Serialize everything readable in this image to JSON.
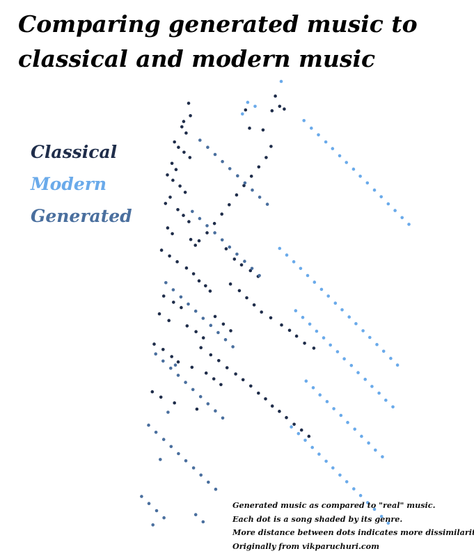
{
  "title": "Comparing generated music to classical and modern music",
  "legend": [
    {
      "label": "Classical",
      "color": "#1f2d4a"
    },
    {
      "label": "Modern",
      "color": "#6aaaea"
    },
    {
      "label": "Generated",
      "color": "#4a6f9e"
    }
  ],
  "caption": [
    "Generated music as compared to \"real\" music.",
    "Each dot is a song shaded by its genre.",
    "More distance between dots indicates more dissimilarity.",
    "Originally from vikparuchuri.com"
  ],
  "chart_data": {
    "type": "scatter",
    "title": "Comparing generated music to classical and modern music",
    "xlabel": "",
    "ylabel": "",
    "axes_shown": false,
    "grid": false,
    "legend_position": "left",
    "xlim": [
      0,
      100
    ],
    "ylim": [
      0,
      100
    ],
    "series": [
      {
        "name": "Classical",
        "color": "#1f2d4a",
        "points": [
          [
            51.5,
            96.7
          ],
          [
            52.9,
            94.4
          ],
          [
            54.4,
            93.8
          ],
          [
            50.4,
            93.4
          ],
          [
            41.8,
            93.6
          ],
          [
            43.1,
            89.5
          ],
          [
            47.5,
            89.1
          ],
          [
            50.1,
            85.4
          ],
          [
            23.3,
            95.1
          ],
          [
            23.9,
            92.3
          ],
          [
            21.7,
            91.0
          ],
          [
            21.1,
            89.8
          ],
          [
            22.5,
            88.4
          ],
          [
            18.7,
            86.4
          ],
          [
            20.0,
            85.2
          ],
          [
            21.8,
            84.1
          ],
          [
            23.7,
            82.9
          ],
          [
            17.9,
            81.6
          ],
          [
            19.2,
            80.2
          ],
          [
            16.4,
            79.0
          ],
          [
            18.2,
            77.8
          ],
          [
            20.5,
            76.5
          ],
          [
            22.2,
            75.1
          ],
          [
            17.3,
            74.0
          ],
          [
            15.8,
            72.6
          ],
          [
            19.8,
            71.2
          ],
          [
            21.6,
            69.9
          ],
          [
            23.4,
            68.5
          ],
          [
            16.5,
            67.1
          ],
          [
            18.0,
            65.8
          ],
          [
            24.0,
            64.5
          ],
          [
            25.5,
            63.2
          ],
          [
            14.5,
            62.1
          ],
          [
            17.1,
            60.8
          ],
          [
            19.6,
            59.5
          ],
          [
            22.6,
            58.1
          ],
          [
            24.9,
            56.8
          ],
          [
            26.7,
            55.2
          ],
          [
            28.8,
            54.1
          ],
          [
            30.3,
            52.9
          ],
          [
            15.2,
            51.8
          ],
          [
            18.4,
            50.4
          ],
          [
            20.9,
            49.2
          ],
          [
            13.8,
            47.8
          ],
          [
            16.9,
            46.3
          ],
          [
            22.8,
            45.1
          ],
          [
            25.7,
            43.8
          ],
          [
            28.1,
            42.4
          ],
          [
            12.1,
            41.0
          ],
          [
            15.0,
            39.8
          ],
          [
            17.8,
            38.2
          ],
          [
            19.9,
            37.0
          ],
          [
            24.4,
            35.8
          ],
          [
            29.0,
            34.5
          ],
          [
            31.5,
            33.2
          ],
          [
            33.8,
            31.9
          ],
          [
            11.5,
            30.3
          ],
          [
            14.3,
            29.1
          ],
          [
            18.7,
            27.8
          ],
          [
            26.0,
            26.4
          ],
          [
            35.5,
            62.4
          ],
          [
            38.2,
            60.1
          ],
          [
            40.5,
            58.8
          ],
          [
            43.4,
            57.5
          ],
          [
            45.9,
            56.2
          ],
          [
            36.9,
            54.5
          ],
          [
            39.8,
            53.0
          ],
          [
            42.2,
            51.4
          ],
          [
            44.6,
            49.8
          ],
          [
            47.0,
            48.2
          ],
          [
            50.0,
            46.9
          ],
          [
            53.5,
            45.3
          ],
          [
            56.1,
            44.1
          ],
          [
            58.4,
            42.8
          ],
          [
            61.0,
            41.2
          ],
          [
            64.0,
            40.1
          ],
          [
            31.9,
            47.2
          ],
          [
            34.6,
            45.5
          ],
          [
            37.0,
            44.0
          ],
          [
            27.3,
            40.2
          ],
          [
            30.5,
            38.6
          ],
          [
            33.1,
            37.3
          ],
          [
            35.8,
            35.7
          ],
          [
            38.6,
            34.3
          ],
          [
            41.0,
            33.0
          ],
          [
            43.5,
            31.6
          ],
          [
            46.0,
            30.0
          ],
          [
            48.3,
            28.7
          ],
          [
            50.5,
            27.1
          ],
          [
            52.8,
            25.9
          ],
          [
            55.1,
            24.5
          ],
          [
            57.6,
            23.0
          ],
          [
            60.0,
            21.7
          ],
          [
            62.4,
            20.3
          ],
          [
            26.7,
            64.2
          ],
          [
            29.3,
            66.0
          ],
          [
            31.7,
            68.1
          ],
          [
            34.1,
            70.2
          ],
          [
            36.5,
            72.3
          ],
          [
            38.9,
            74.5
          ],
          [
            41.3,
            76.6
          ],
          [
            43.7,
            78.7
          ],
          [
            46.1,
            80.8
          ],
          [
            48.5,
            82.9
          ]
        ]
      },
      {
        "name": "Modern",
        "color": "#6aaaea",
        "points": [
          [
            53.4,
            100.0
          ],
          [
            42.5,
            95.3
          ],
          [
            44.9,
            94.4
          ],
          [
            40.8,
            92.7
          ],
          [
            60.8,
            91.2
          ],
          [
            63.2,
            89.5
          ],
          [
            65.5,
            88.0
          ],
          [
            67.9,
            86.4
          ],
          [
            70.1,
            84.9
          ],
          [
            72.4,
            83.3
          ],
          [
            74.6,
            81.8
          ],
          [
            76.9,
            80.3
          ],
          [
            79.1,
            78.7
          ],
          [
            81.4,
            77.2
          ],
          [
            83.7,
            75.6
          ],
          [
            85.9,
            74.1
          ],
          [
            88.2,
            72.5
          ],
          [
            90.4,
            71.0
          ],
          [
            92.7,
            69.4
          ],
          [
            94.9,
            67.9
          ],
          [
            52.9,
            62.5
          ],
          [
            55.2,
            61.0
          ],
          [
            57.5,
            59.5
          ],
          [
            59.7,
            58.0
          ],
          [
            62.0,
            56.4
          ],
          [
            64.2,
            54.9
          ],
          [
            66.5,
            53.3
          ],
          [
            68.7,
            51.8
          ],
          [
            71.0,
            50.2
          ],
          [
            73.2,
            48.7
          ],
          [
            75.5,
            47.1
          ],
          [
            77.7,
            45.6
          ],
          [
            80.0,
            44.0
          ],
          [
            82.2,
            42.5
          ],
          [
            84.5,
            40.9
          ],
          [
            86.7,
            39.4
          ],
          [
            89.0,
            37.8
          ],
          [
            91.2,
            36.3
          ],
          [
            58.1,
            48.5
          ],
          [
            60.4,
            47.0
          ],
          [
            62.7,
            45.5
          ],
          [
            64.9,
            43.9
          ],
          [
            67.2,
            42.4
          ],
          [
            69.4,
            40.8
          ],
          [
            71.7,
            39.3
          ],
          [
            73.9,
            37.7
          ],
          [
            76.2,
            36.2
          ],
          [
            78.4,
            34.6
          ],
          [
            80.7,
            33.1
          ],
          [
            82.9,
            31.5
          ],
          [
            85.2,
            30.0
          ],
          [
            87.4,
            28.4
          ],
          [
            89.7,
            26.9
          ],
          [
            61.5,
            32.7
          ],
          [
            63.8,
            31.2
          ],
          [
            66.0,
            29.6
          ],
          [
            68.3,
            28.1
          ],
          [
            70.5,
            26.5
          ],
          [
            72.8,
            25.0
          ],
          [
            75.0,
            23.4
          ],
          [
            77.3,
            21.9
          ],
          [
            79.5,
            20.3
          ],
          [
            81.8,
            18.8
          ],
          [
            84.0,
            17.2
          ],
          [
            86.3,
            15.7
          ],
          [
            56.7,
            22.4
          ],
          [
            59.0,
            20.9
          ],
          [
            61.2,
            19.4
          ],
          [
            63.5,
            17.8
          ],
          [
            65.7,
            16.3
          ],
          [
            68.0,
            14.7
          ],
          [
            70.2,
            13.2
          ],
          [
            72.5,
            11.6
          ],
          [
            74.7,
            10.1
          ],
          [
            77.0,
            8.5
          ],
          [
            79.2,
            7.0
          ],
          [
            81.5,
            5.4
          ],
          [
            83.7,
            3.9
          ],
          [
            86.0,
            2.3
          ],
          [
            88.2,
            0.8
          ]
        ]
      },
      {
        "name": "Generated",
        "color": "#4a6f9e",
        "points": [
          [
            27.0,
            86.8
          ],
          [
            29.5,
            85.2
          ],
          [
            31.9,
            83.6
          ],
          [
            34.3,
            82.0
          ],
          [
            36.7,
            80.4
          ],
          [
            39.2,
            78.8
          ],
          [
            41.6,
            77.2
          ],
          [
            44.0,
            75.6
          ],
          [
            46.4,
            74.0
          ],
          [
            48.9,
            72.4
          ],
          [
            24.5,
            70.8
          ],
          [
            26.9,
            69.2
          ],
          [
            29.3,
            67.6
          ],
          [
            31.8,
            66.0
          ],
          [
            34.2,
            64.4
          ],
          [
            36.6,
            62.8
          ],
          [
            39.0,
            61.2
          ],
          [
            41.5,
            59.6
          ],
          [
            43.9,
            58.0
          ],
          [
            46.3,
            56.4
          ],
          [
            15.9,
            54.8
          ],
          [
            18.3,
            53.2
          ],
          [
            20.8,
            51.6
          ],
          [
            23.2,
            50.0
          ],
          [
            25.6,
            48.4
          ],
          [
            28.0,
            46.8
          ],
          [
            30.5,
            45.2
          ],
          [
            32.9,
            43.6
          ],
          [
            35.3,
            42.0
          ],
          [
            37.7,
            40.4
          ],
          [
            12.6,
            38.8
          ],
          [
            15.0,
            37.2
          ],
          [
            17.5,
            35.6
          ],
          [
            19.9,
            34.0
          ],
          [
            22.3,
            32.4
          ],
          [
            24.7,
            30.8
          ],
          [
            27.2,
            29.2
          ],
          [
            29.6,
            27.6
          ],
          [
            32.0,
            26.0
          ],
          [
            34.4,
            24.4
          ],
          [
            10.3,
            22.8
          ],
          [
            12.7,
            21.2
          ],
          [
            15.2,
            19.6
          ],
          [
            17.6,
            18.0
          ],
          [
            20.0,
            16.4
          ],
          [
            22.4,
            14.8
          ],
          [
            24.9,
            13.2
          ],
          [
            27.3,
            11.6
          ],
          [
            29.7,
            10.0
          ],
          [
            32.1,
            8.4
          ],
          [
            8.0,
            6.8
          ],
          [
            10.4,
            5.2
          ],
          [
            12.9,
            3.6
          ],
          [
            15.3,
            2.0
          ],
          [
            25.6,
            2.7
          ],
          [
            28.0,
            1.1
          ],
          [
            11.7,
            0.4
          ],
          [
            14.1,
            15.1
          ],
          [
            16.6,
            25.7
          ],
          [
            19.0,
            36.3
          ]
        ]
      }
    ]
  }
}
